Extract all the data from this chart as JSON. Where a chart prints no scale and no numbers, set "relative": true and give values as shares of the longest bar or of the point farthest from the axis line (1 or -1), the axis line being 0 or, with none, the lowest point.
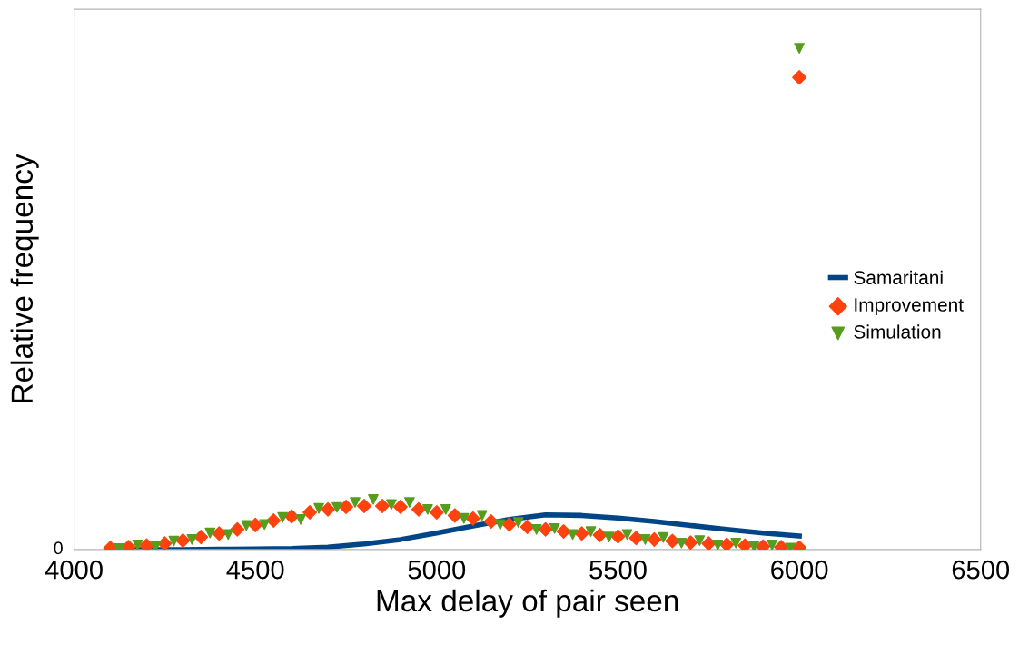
{
  "chart_data": {
    "type": "scatter",
    "relative": true,
    "xlabel": "Max delay of pair seen",
    "ylabel": "Relative frequency",
    "xlim": [
      4000,
      6500
    ],
    "xticks": [
      4000,
      4500,
      5000,
      5500,
      6000,
      6500
    ],
    "annotations": [
      "0"
    ],
    "legend": "right",
    "grid": false,
    "series": [
      {
        "name": "Samaritani",
        "type": "line",
        "marker": "none",
        "color": "#004586",
        "x": [
          4100,
          4200,
          4300,
          4400,
          4500,
          4600,
          4700,
          4800,
          4900,
          5000,
          5100,
          5200,
          5300,
          5400,
          5500,
          5600,
          5700,
          5800,
          5900,
          6000
        ],
        "values": [
          0,
          0,
          0,
          0.0005,
          0.001,
          0.002,
          0.005,
          0.011,
          0.02,
          0.033,
          0.047,
          0.06,
          0.069,
          0.068,
          0.063,
          0.056,
          0.048,
          0.04,
          0.033,
          0.027
        ]
      },
      {
        "name": "Improvement",
        "marker": "diamond",
        "color": "#ff420e",
        "x": [
          4100,
          4150,
          4200,
          4250,
          4300,
          4350,
          4400,
          4450,
          4500,
          4550,
          4600,
          4650,
          4700,
          4750,
          4800,
          4850,
          4900,
          4950,
          5000,
          5050,
          5100,
          5150,
          5200,
          5250,
          5300,
          5350,
          5400,
          5450,
          5500,
          5550,
          5600,
          5650,
          5700,
          5750,
          5800,
          5850,
          5900,
          5950,
          6000,
          6000
        ],
        "values": [
          0.003,
          0.005,
          0.008,
          0.012,
          0.018,
          0.025,
          0.032,
          0.04,
          0.049,
          0.058,
          0.066,
          0.074,
          0.08,
          0.085,
          0.087,
          0.087,
          0.085,
          0.08,
          0.074,
          0.068,
          0.062,
          0.056,
          0.05,
          0.045,
          0.04,
          0.036,
          0.032,
          0.029,
          0.026,
          0.023,
          0.02,
          0.017,
          0.014,
          0.012,
          0.01,
          0.008,
          0.006,
          0.005,
          0.004,
          0.942
        ]
      },
      {
        "name": "Simulation",
        "marker": "triangle",
        "color": "#579d1c",
        "x": [
          4125,
          4175,
          4225,
          4275,
          4325,
          4375,
          4425,
          4475,
          4525,
          4575,
          4625,
          4675,
          4725,
          4775,
          4825,
          4875,
          4925,
          4975,
          5025,
          5075,
          5125,
          5175,
          5225,
          5275,
          5325,
          5375,
          5425,
          5475,
          5525,
          5575,
          5625,
          5675,
          5725,
          5775,
          5825,
          5875,
          5925,
          5975,
          6000
        ],
        "values": [
          0.002,
          0.009,
          0.006,
          0.017,
          0.02,
          0.033,
          0.03,
          0.048,
          0.05,
          0.064,
          0.06,
          0.082,
          0.084,
          0.094,
          0.1,
          0.09,
          0.094,
          0.08,
          0.08,
          0.062,
          0.068,
          0.05,
          0.054,
          0.04,
          0.042,
          0.03,
          0.036,
          0.025,
          0.03,
          0.02,
          0.024,
          0.013,
          0.018,
          0.009,
          0.013,
          0.006,
          0.009,
          0.003,
          1.0
        ]
      }
    ]
  }
}
